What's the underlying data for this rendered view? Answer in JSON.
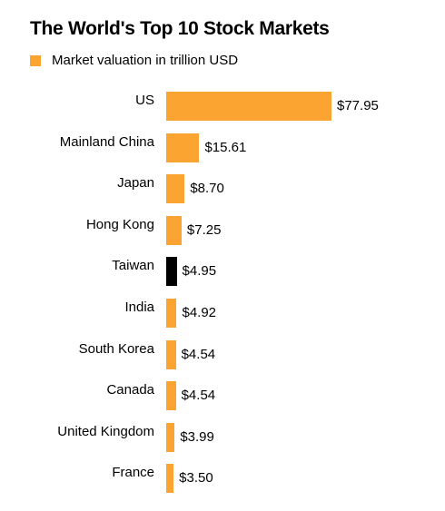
{
  "chart_data": {
    "type": "bar",
    "orientation": "horizontal",
    "title": "The World's Top 10 Stock Markets",
    "legend": "Market valuation in trillion USD",
    "categories": [
      "US",
      "Mainland China",
      "Japan",
      "Hong Kong",
      "Taiwan",
      "India",
      "South Korea",
      "Canada",
      "United Kingdom",
      "France"
    ],
    "values": [
      77.95,
      15.61,
      8.7,
      7.25,
      4.95,
      4.92,
      4.54,
      4.54,
      3.99,
      3.5
    ],
    "value_labels": [
      "$77.95",
      "$15.61",
      "$8.70",
      "$7.25",
      "$4.95",
      "$4.92",
      "$4.54",
      "$4.54",
      "$3.99",
      "$3.50"
    ],
    "color": "#fba431",
    "colors": [
      "#fba431",
      "#fba431",
      "#fba431",
      "#fba431",
      "#000000",
      "#fba431",
      "#fba431",
      "#fba431",
      "#fba431",
      "#fba431"
    ]
  }
}
